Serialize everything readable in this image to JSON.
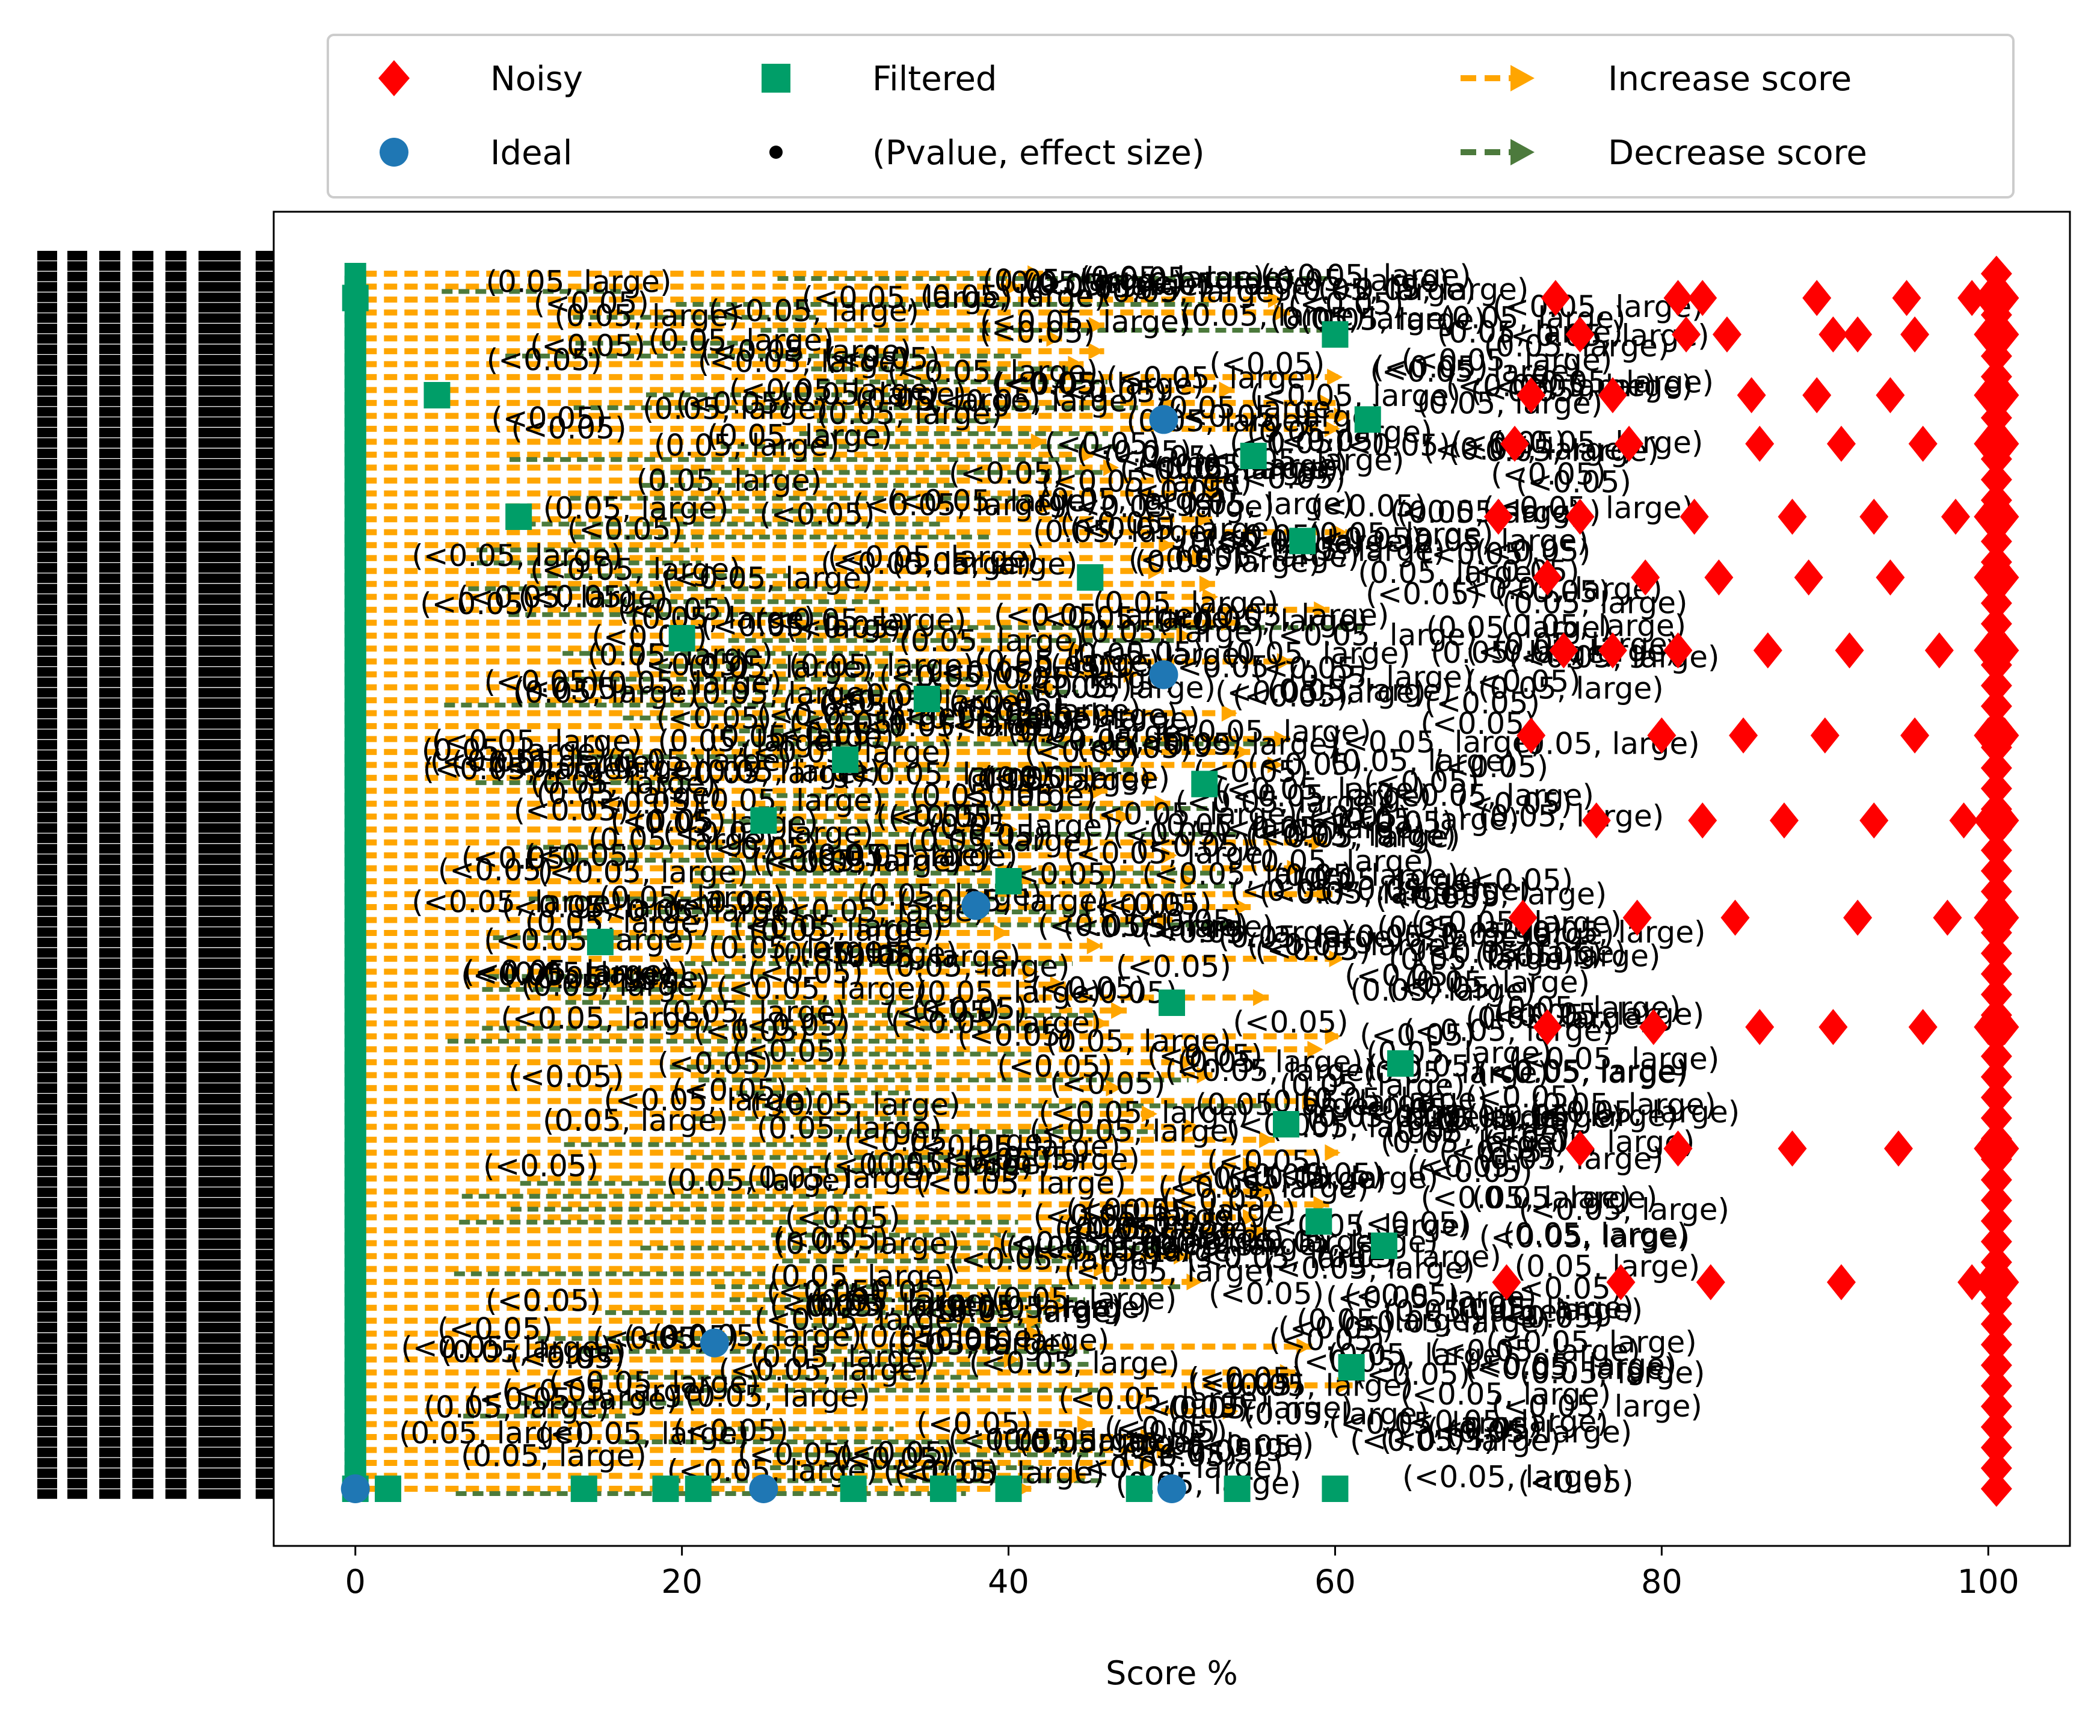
{
  "chart_data": {
    "type": "scatter",
    "xlabel": "Score %",
    "ylabel": "",
    "xlim": [
      -5,
      105
    ],
    "xticks": [
      0,
      20,
      40,
      60,
      80,
      100
    ],
    "grid": false,
    "legend": {
      "placement": "top-center, above plot",
      "columns": 3,
      "entries": [
        {
          "label": "Noisy",
          "marker": "diamond",
          "color": "#ff0000"
        },
        {
          "label": "Ideal",
          "marker": "circle",
          "color": "#1f77b4"
        },
        {
          "label": "Filtered",
          "marker": "square",
          "color": "#009e68"
        },
        {
          "label": "(Pvalue, effect size)",
          "marker": "dot",
          "color": "#000000"
        },
        {
          "label": "Increase score",
          "marker": "dashed-arrow",
          "color": "#ffa500"
        },
        {
          "label": "Decrease score",
          "marker": "dashed-arrow",
          "color": "#4c7a3c"
        }
      ]
    },
    "series": [
      {
        "name": "Noisy",
        "color": "#ff0000",
        "x": [
          73.5,
          81,
          82.5,
          89.5,
          95,
          99,
          100,
          100.5,
          101,
          75,
          81.5,
          84,
          90.5,
          92,
          95.5,
          100,
          101,
          72,
          77,
          85.5,
          89.5,
          94,
          100,
          101,
          71,
          78,
          86,
          91,
          96,
          100,
          101,
          70,
          75,
          82,
          88,
          93,
          98,
          100,
          101,
          73,
          79,
          83.5,
          89,
          94,
          100,
          101,
          74,
          77,
          81,
          86.5,
          91.5,
          97,
          100,
          101,
          72,
          80,
          85,
          90,
          95.5,
          100,
          101,
          76,
          82.5,
          87.5,
          93,
          98.5,
          100,
          101,
          71.5,
          78.5,
          84.5,
          92,
          97.5,
          100,
          101,
          73,
          79.5,
          86,
          90.5,
          96,
          100,
          101,
          75,
          81,
          88,
          94.5,
          100,
          101,
          70.5,
          77.5,
          83,
          91,
          99,
          100,
          101
        ],
        "y": [
          98,
          98,
          98,
          98,
          98,
          98,
          98,
          98,
          98,
          95,
          95,
          95,
          95,
          95,
          95,
          95,
          95,
          90,
          90,
          90,
          90,
          90,
          90,
          90,
          86,
          86,
          86,
          86,
          86,
          86,
          86,
          80,
          80,
          80,
          80,
          80,
          80,
          80,
          80,
          75,
          75,
          75,
          75,
          75,
          75,
          75,
          69,
          69,
          69,
          69,
          69,
          69,
          69,
          69,
          62,
          62,
          62,
          62,
          62,
          62,
          62,
          55,
          55,
          55,
          55,
          55,
          55,
          55,
          47,
          47,
          47,
          47,
          47,
          47,
          47,
          38,
          38,
          38,
          38,
          38,
          38,
          38,
          28,
          28,
          28,
          28,
          28,
          28,
          17,
          17,
          17,
          17,
          17,
          17,
          17
        ]
      },
      {
        "name": "Ideal",
        "color": "#1f77b4",
        "x": [
          0,
          25,
          50,
          38,
          49.5,
          49.5,
          22
        ],
        "y": [
          0,
          0,
          0,
          48,
          88,
          67,
          12
        ]
      },
      {
        "name": "Filtered",
        "color": "#009e68",
        "x": [
          0,
          2,
          14,
          19,
          21,
          30.5,
          36,
          40,
          48,
          54,
          60,
          0,
          5,
          10,
          20,
          30,
          40,
          50,
          57,
          63,
          60,
          55,
          45,
          35,
          25,
          15,
          62,
          58,
          52,
          64,
          59,
          61
        ],
        "y": [
          0,
          0,
          0,
          0,
          0,
          0,
          0,
          0,
          0,
          0,
          0,
          98,
          90,
          80,
          70,
          60,
          50,
          40,
          30,
          20,
          95,
          85,
          75,
          65,
          55,
          45,
          88,
          78,
          58,
          35,
          22,
          10
        ]
      }
    ],
    "annotation_labels": [
      "(<0.05)",
      "(<0.05, large)",
      "(0.05, large)"
    ]
  }
}
